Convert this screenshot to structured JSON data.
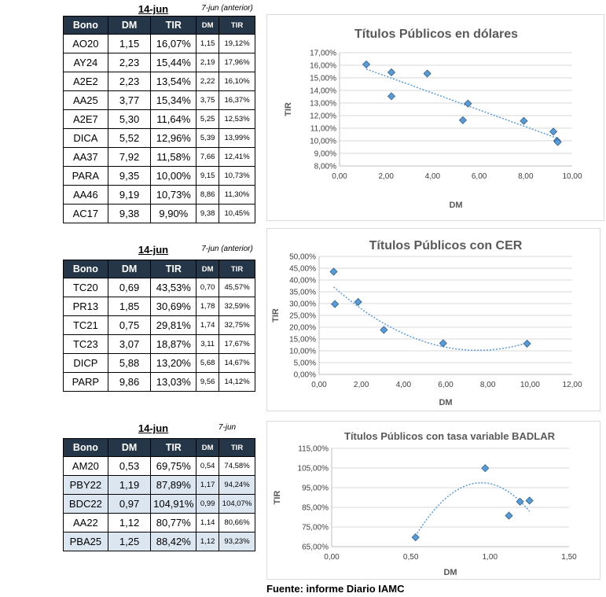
{
  "tables": [
    {
      "date": "14-jun",
      "prev_label": "7-jun (anterior)",
      "headers": [
        "Bono",
        "DM",
        "TIR",
        "DM",
        "TIR"
      ],
      "rows": [
        {
          "bono": "AO20",
          "dm": "1,15",
          "tir": "16,07%",
          "dm_prev": "1,15",
          "tir_prev": "19,12%"
        },
        {
          "bono": "AY24",
          "dm": "2,23",
          "tir": "15,44%",
          "dm_prev": "2,19",
          "tir_prev": "17,96%"
        },
        {
          "bono": "A2E2",
          "dm": "2,23",
          "tir": "13,54%",
          "dm_prev": "2,22",
          "tir_prev": "16,10%"
        },
        {
          "bono": "AA25",
          "dm": "3,77",
          "tir": "15,34%",
          "dm_prev": "3,75",
          "tir_prev": "16,37%"
        },
        {
          "bono": "A2E7",
          "dm": "5,30",
          "tir": "11,64%",
          "dm_prev": "5,25",
          "tir_prev": "12,53%"
        },
        {
          "bono": "DICA",
          "dm": "5,52",
          "tir": "12,96%",
          "dm_prev": "5,39",
          "tir_prev": "13,99%"
        },
        {
          "bono": "AA37",
          "dm": "7,92",
          "tir": "11,58%",
          "dm_prev": "7,66",
          "tir_prev": "12,41%"
        },
        {
          "bono": "PARA",
          "dm": "9,35",
          "tir": "10,00%",
          "dm_prev": "9,15",
          "tir_prev": "10,73%"
        },
        {
          "bono": "AA46",
          "dm": "9,19",
          "tir": "10,73%",
          "dm_prev": "8,86",
          "tir_prev": "11,30%"
        },
        {
          "bono": "AC17",
          "dm": "9,38",
          "tir": "9,90%",
          "dm_prev": "9,38",
          "tir_prev": "10,45%"
        }
      ]
    },
    {
      "date": "14-jun",
      "prev_label": "7-jun (anterior)",
      "headers": [
        "Bono",
        "DM",
        "TIR",
        "DM",
        "TIR"
      ],
      "rows": [
        {
          "bono": "TC20",
          "dm": "0,69",
          "tir": "43,53%",
          "dm_prev": "0,70",
          "tir_prev": "45,57%"
        },
        {
          "bono": "PR13",
          "dm": "1,85",
          "tir": "30,69%",
          "dm_prev": "1,78",
          "tir_prev": "32,59%"
        },
        {
          "bono": "TC21",
          "dm": "0,75",
          "tir": "29,81%",
          "dm_prev": "1,74",
          "tir_prev": "32,75%"
        },
        {
          "bono": "TC23",
          "dm": "3,07",
          "tir": "18,87%",
          "dm_prev": "3,11",
          "tir_prev": "17,67%"
        },
        {
          "bono": "DICP",
          "dm": "5,88",
          "tir": "13,20%",
          "dm_prev": "5,68",
          "tir_prev": "14,67%"
        },
        {
          "bono": "PARP",
          "dm": "9,86",
          "tir": "13,03%",
          "dm_prev": "9,56",
          "tir_prev": "14,12%"
        }
      ]
    },
    {
      "date": "14-jun",
      "prev_label": "7-jun",
      "headers": [
        "Bono",
        "DM",
        "TIR",
        "DM",
        "TIR"
      ],
      "rows": [
        {
          "bono": "AM20",
          "dm": "0,53",
          "tir": "69,75%",
          "dm_prev": "0,54",
          "tir_prev": "74,58%",
          "highlight": false
        },
        {
          "bono": "PBY22",
          "dm": "1,19",
          "tir": "87,89%",
          "dm_prev": "1,17",
          "tir_prev": "94,24%",
          "highlight": true
        },
        {
          "bono": "BDC22",
          "dm": "0,97",
          "tir": "104,91%",
          "dm_prev": "0,99",
          "tir_prev": "104,07%",
          "highlight": true
        },
        {
          "bono": "AA22",
          "dm": "1,12",
          "tir": "80,77%",
          "dm_prev": "1,14",
          "tir_prev": "80,66%",
          "highlight": false
        },
        {
          "bono": "PBA25",
          "dm": "1,25",
          "tir": "88,42%",
          "dm_prev": "1,12",
          "tir_prev": "93,23%",
          "highlight": true
        }
      ]
    }
  ],
  "chart_data": [
    {
      "type": "scatter",
      "title": "Títulos Públicos en dólares",
      "xlabel": "DM",
      "ylabel": "TIR",
      "xlim": [
        0,
        10
      ],
      "ylim": [
        8,
        17
      ],
      "xticks": [
        0,
        2,
        4,
        6,
        8,
        10
      ],
      "yticks": [
        8,
        9,
        10,
        11,
        12,
        13,
        14,
        15,
        16,
        17
      ],
      "xtick_labels": [
        "0,00",
        "2,00",
        "4,00",
        "6,00",
        "8,00",
        "10,00"
      ],
      "ytick_labels": [
        "8,00%",
        "9,00%",
        "10,00%",
        "11,00%",
        "12,00%",
        "13,00%",
        "14,00%",
        "15,00%",
        "16,00%",
        "17,00%"
      ],
      "grid": "horizontal",
      "trendline": "linear",
      "marker_color": "#5b9bd5",
      "x": [
        1.15,
        2.23,
        2.23,
        3.77,
        5.3,
        5.52,
        7.92,
        9.35,
        9.19,
        9.38
      ],
      "y": [
        16.07,
        15.44,
        13.54,
        15.34,
        11.64,
        12.96,
        11.58,
        10.0,
        10.73,
        9.9
      ]
    },
    {
      "type": "scatter",
      "title": "Títulos Públicos con CER",
      "xlabel": "DM",
      "ylabel": "TIR",
      "xlim": [
        0,
        12
      ],
      "ylim": [
        0,
        50
      ],
      "xticks": [
        0,
        2,
        4,
        6,
        8,
        10,
        12
      ],
      "yticks": [
        0,
        5,
        10,
        15,
        20,
        25,
        30,
        35,
        40,
        45,
        50
      ],
      "xtick_labels": [
        "0,00",
        "2,00",
        "4,00",
        "6,00",
        "8,00",
        "10,00",
        "12,00"
      ],
      "ytick_labels": [
        "0,00%",
        "5,00%",
        "10,00%",
        "15,00%",
        "20,00%",
        "25,00%",
        "30,00%",
        "35,00%",
        "40,00%",
        "45,00%",
        "50,00%"
      ],
      "grid": "horizontal",
      "trendline": "polynomial",
      "marker_color": "#5b9bd5",
      "x": [
        0.69,
        1.85,
        0.75,
        3.07,
        5.88,
        9.86
      ],
      "y": [
        43.53,
        30.69,
        29.81,
        18.87,
        13.2,
        13.03
      ]
    },
    {
      "type": "scatter",
      "title": "Títulos Públicos con tasa variable BADLAR",
      "xlabel": "DM",
      "ylabel": "TIR",
      "xlim": [
        0,
        1.5
      ],
      "ylim": [
        65,
        115
      ],
      "xticks": [
        0,
        0.5,
        1,
        1.5
      ],
      "yticks": [
        65,
        75,
        85,
        95,
        105,
        115
      ],
      "xtick_labels": [
        "0,00",
        "0,50",
        "1,00",
        "1,50"
      ],
      "ytick_labels": [
        "65,00%",
        "75,00%",
        "85,00%",
        "95,00%",
        "105,00%",
        "115,00%"
      ],
      "grid": "horizontal",
      "trendline": "polynomial",
      "marker_color": "#5b9bd5",
      "x": [
        0.53,
        1.19,
        0.97,
        1.12,
        1.25
      ],
      "y": [
        69.75,
        87.89,
        104.91,
        80.77,
        88.42
      ]
    }
  ],
  "source": "Fuente: informe Diario IAMC"
}
